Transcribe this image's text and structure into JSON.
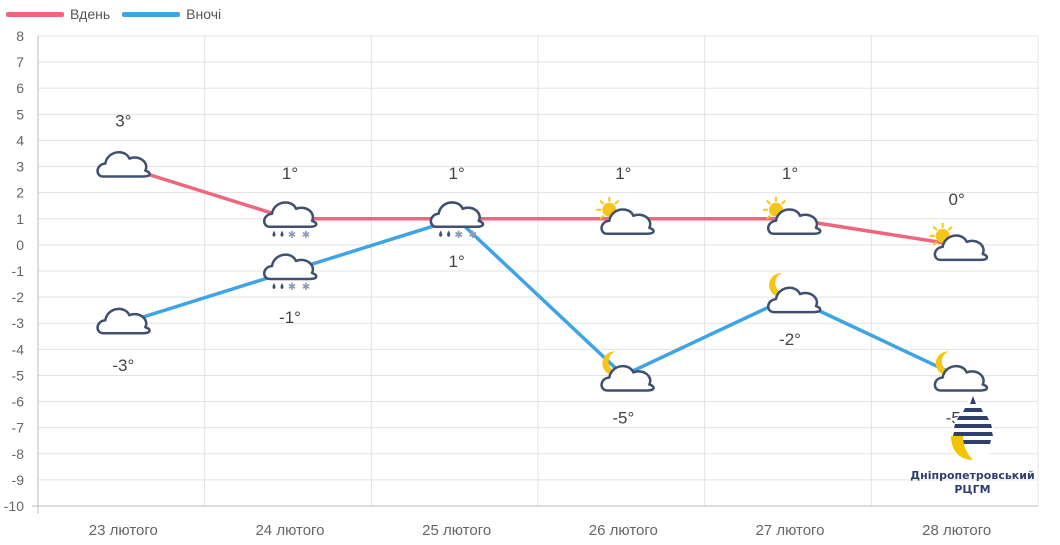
{
  "legend": {
    "day_label": "Вдень",
    "night_label": "Вночі",
    "day_color": "#f0667e",
    "night_color": "#3fa4e6"
  },
  "chart_data": {
    "type": "line",
    "categories": [
      "23 лютого",
      "24 лютого",
      "25 лютого",
      "26 лютого",
      "27 лютого",
      "28 лютого"
    ],
    "series": [
      {
        "name": "Вдень",
        "color": "#f0667e",
        "values": [
          3,
          1,
          1,
          1,
          1,
          0
        ],
        "labels": [
          "3°",
          "1°",
          "1°",
          "1°",
          "1°",
          "0°"
        ],
        "icons": [
          "cloud",
          "cloud-sleet",
          "cloud-sleet",
          "sun-cloud",
          "sun-cloud",
          "sun-cloud"
        ]
      },
      {
        "name": "Вночі",
        "color": "#3fa4e6",
        "values": [
          -3,
          -1,
          1,
          -5,
          -2,
          -5
        ],
        "labels": [
          "-3°",
          "-1°",
          "1°",
          "-5°",
          "-2°",
          "-5°"
        ],
        "icons": [
          "cloud",
          "cloud-sleet",
          "cloud-sleet",
          "moon-cloud",
          "moon-cloud",
          "moon-cloud"
        ]
      }
    ],
    "ylim": [
      -10,
      8
    ],
    "yticks": [
      8,
      7,
      6,
      5,
      4,
      3,
      2,
      1,
      0,
      -1,
      -2,
      -3,
      -4,
      -5,
      -6,
      -7,
      -8,
      -9,
      -10
    ],
    "grid": true,
    "legend_position": "top-left"
  },
  "logo": {
    "text_line1": "Дніпропетровський",
    "text_line2": "РЦГМ"
  }
}
